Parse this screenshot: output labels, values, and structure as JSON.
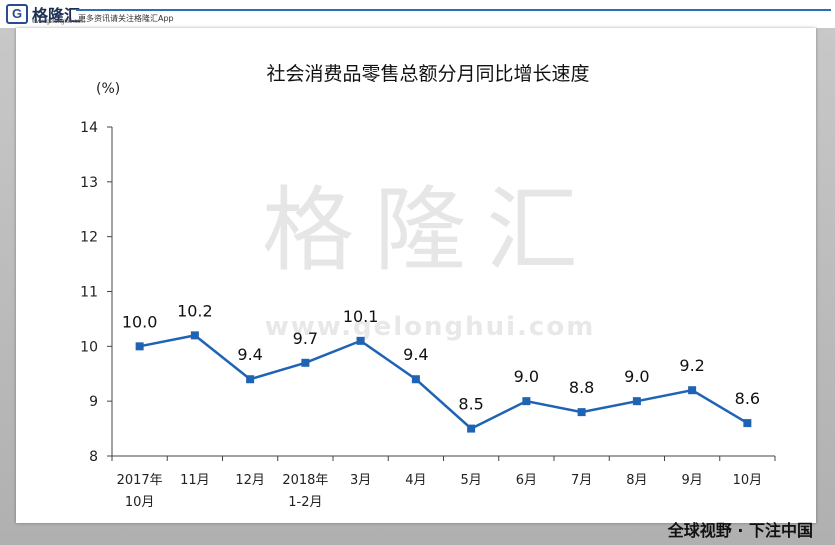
{
  "header": {
    "logo_text": "格隆汇",
    "logo_site": "www.gelonghui.com",
    "slogan": "更多资讯请关注格隆汇App"
  },
  "watermark": {
    "name": "格隆汇",
    "site": "www.gelonghui.com"
  },
  "footer": {
    "tag": "全球视野 · 下注中国"
  },
  "chart_data": {
    "type": "line",
    "title": "社会消费品零售总额分月同比增长速度",
    "ylabel": "(%)",
    "xlabel": "",
    "ylim": [
      8,
      14
    ],
    "yticks": [
      "8",
      "9",
      "10",
      "11",
      "12",
      "13",
      "14"
    ],
    "categories": [
      [
        "2017年",
        "10月"
      ],
      [
        "11月"
      ],
      [
        "12月"
      ],
      [
        "2018年",
        "1-2月"
      ],
      [
        "3月"
      ],
      [
        "4月"
      ],
      [
        "5月"
      ],
      [
        "6月"
      ],
      [
        "7月"
      ],
      [
        "8月"
      ],
      [
        "9月"
      ],
      [
        "10月"
      ]
    ],
    "values": [
      10.0,
      10.2,
      9.4,
      9.7,
      10.1,
      9.4,
      8.5,
      9.0,
      8.8,
      9.0,
      9.2,
      8.6
    ],
    "data_labels": [
      "10.0",
      "10.2",
      "9.4",
      "9.7",
      "10.1",
      "9.4",
      "8.5",
      "9.0",
      "8.8",
      "9.0",
      "9.2",
      "8.6"
    ],
    "grid": false,
    "line_color": "#1f63b5"
  }
}
